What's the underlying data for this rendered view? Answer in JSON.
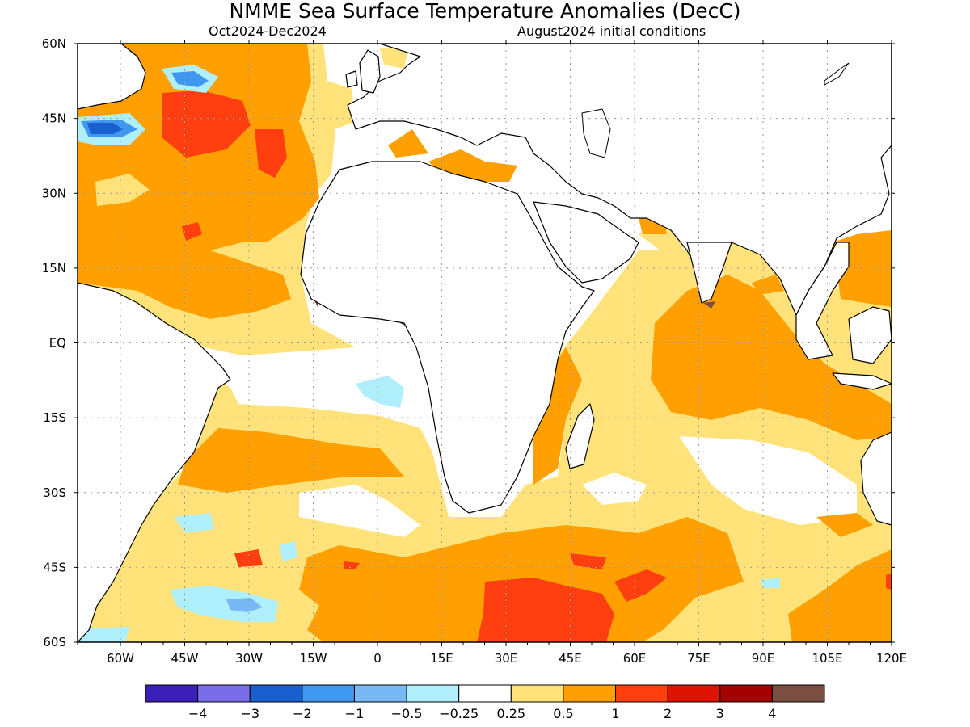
{
  "title": "NMME Sea Surface Temperature Anomalies (DecC)",
  "subtitle_left": "Oct2024-Dec2024",
  "subtitle_right": "August2024 initial conditions",
  "chart_data": {
    "type": "heatmap",
    "map_extent": {
      "lon": [
        -70,
        120
      ],
      "lat": [
        -60,
        60
      ]
    },
    "grid": true,
    "x_ticks": [
      {
        "lon": -60,
        "label": "60W"
      },
      {
        "lon": -45,
        "label": "45W"
      },
      {
        "lon": -30,
        "label": "30W"
      },
      {
        "lon": -15,
        "label": "15W"
      },
      {
        "lon": 0,
        "label": "0"
      },
      {
        "lon": 15,
        "label": "15E"
      },
      {
        "lon": 30,
        "label": "30E"
      },
      {
        "lon": 45,
        "label": "45E"
      },
      {
        "lon": 60,
        "label": "60E"
      },
      {
        "lon": 75,
        "label": "75E"
      },
      {
        "lon": 90,
        "label": "90E"
      },
      {
        "lon": 105,
        "label": "105E"
      },
      {
        "lon": 120,
        "label": "120E"
      }
    ],
    "y_ticks": [
      {
        "lat": 60,
        "label": "60N"
      },
      {
        "lat": 45,
        "label": "45N"
      },
      {
        "lat": 30,
        "label": "30N"
      },
      {
        "lat": 15,
        "label": "15N"
      },
      {
        "lat": 0,
        "label": "EQ"
      },
      {
        "lat": -15,
        "label": "15S"
      },
      {
        "lat": -30,
        "label": "30S"
      },
      {
        "lat": -45,
        "label": "45S"
      },
      {
        "lat": -60,
        "label": "60S"
      }
    ],
    "colorbar": {
      "colors": [
        "#3a1fb8",
        "#7a6ee8",
        "#1a5fd0",
        "#3f97f0",
        "#78b8f5",
        "#aeeffb",
        "#ffffff",
        "#ffe37a",
        "#ffa000",
        "#ff3f10",
        "#e01200",
        "#a50000",
        "#7a4e40"
      ],
      "labels": [
        "-4",
        "-3",
        "-2",
        "-1",
        "-0.5",
        "-0.25",
        "0.25",
        "0.5",
        "1",
        "2",
        "3",
        "4"
      ]
    },
    "colors": {
      "c_lt_m4": "#3a1fb8",
      "c_m3": "#7a6ee8",
      "c_m2": "#1a5fd0",
      "c_m1": "#3f97f0",
      "c_m05": "#78b8f5",
      "c_m025": "#aeeffb",
      "c_0": "#ffffff",
      "c_p025": "#ffe37a",
      "c_p05": "#ffa000",
      "c_p1": "#ff3f10",
      "c_p2": "#e01200",
      "c_p3": "#a50000",
      "c_gt_p4": "#7a4e40"
    }
  }
}
